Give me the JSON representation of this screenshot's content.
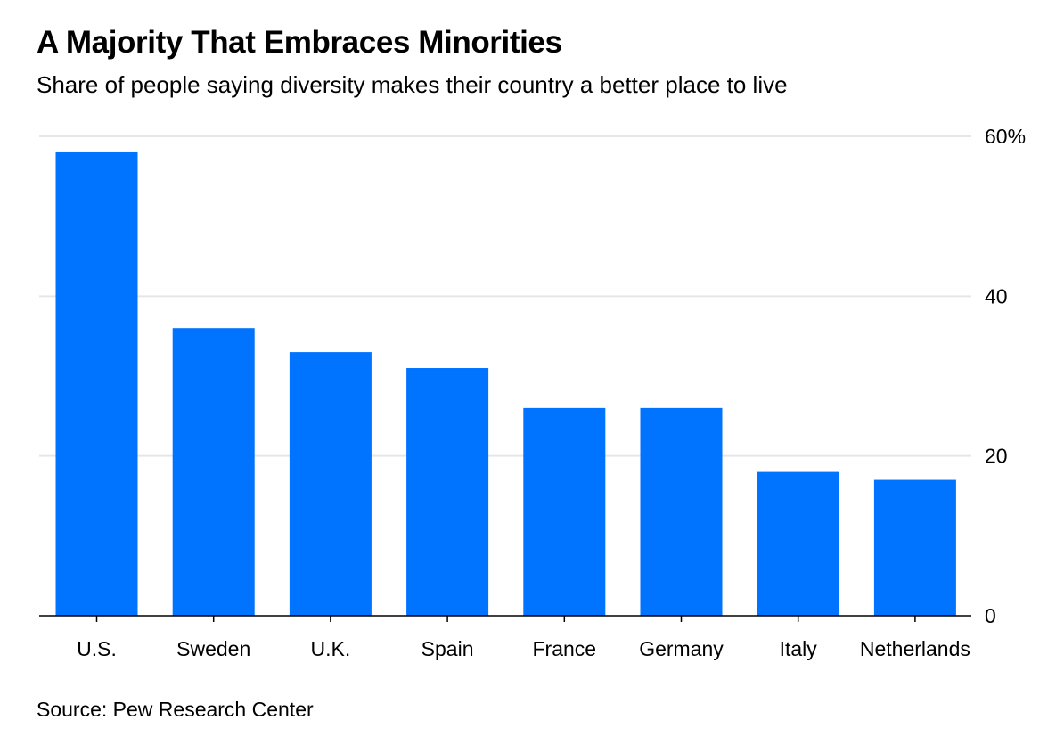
{
  "header": {
    "title": "A Majority That Embraces Minorities",
    "subtitle": "Share of people saying diversity makes their country a better place to live"
  },
  "footer": {
    "source": "Source: Pew Research Center"
  },
  "colors": {
    "bar": "#0073ff",
    "grid": "#e6e6e6",
    "axis": "#000000"
  },
  "chart_data": {
    "type": "bar",
    "title": "A Majority That Embraces Minorities",
    "subtitle": "Share of people saying diversity makes their country a better place to live",
    "categories": [
      "U.S.",
      "Sweden",
      "U.K.",
      "Spain",
      "France",
      "Germany",
      "Italy",
      "Netherlands"
    ],
    "values": [
      58,
      36,
      33,
      31,
      26,
      26,
      18,
      17
    ],
    "xlabel": "",
    "ylabel": "",
    "ylim": [
      0,
      60
    ],
    "y_ticks": [
      0,
      20,
      40,
      60
    ],
    "y_tick_labels": [
      "0",
      "20",
      "40",
      "60%"
    ],
    "y_axis_side": "right",
    "grid": true,
    "source": "Source: Pew Research Center"
  }
}
